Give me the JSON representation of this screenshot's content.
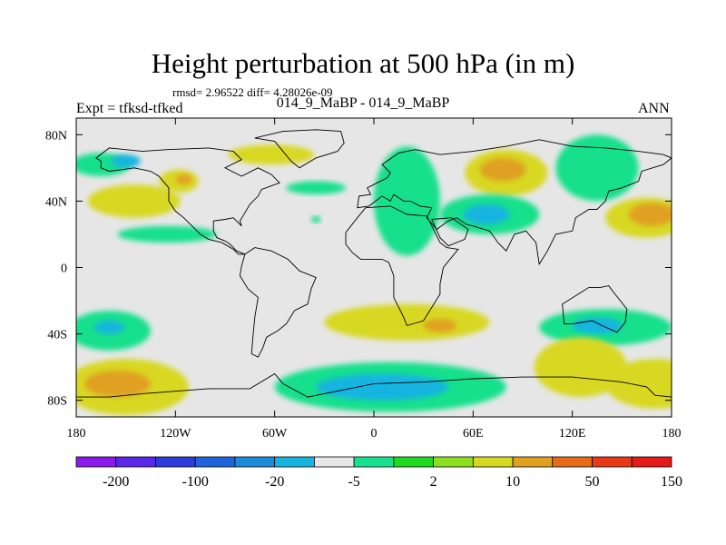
{
  "figure": {
    "title": "Height perturbation at 500 hPa (in m)",
    "stats": "rmsd= 2.96522 diff= 4.28026e-09",
    "left_label": "Expt = tfksd-tfked",
    "center_label": "014_9_MaBP - 014_9_MaBP",
    "right_label": "ANN"
  },
  "chart_data": {
    "type": "heatmap",
    "title": "Height perturbation at 500 hPa (in m)",
    "xlabel": "",
    "ylabel": "",
    "xlim": [
      -180,
      180
    ],
    "ylim": [
      -90,
      90
    ],
    "x_ticks": [
      {
        "value": -180,
        "label": "180"
      },
      {
        "value": -120,
        "label": "120W"
      },
      {
        "value": -60,
        "label": "60W"
      },
      {
        "value": 0,
        "label": "0"
      },
      {
        "value": 60,
        "label": "60E"
      },
      {
        "value": 120,
        "label": "120E"
      },
      {
        "value": 180,
        "label": "180"
      }
    ],
    "y_ticks": [
      {
        "value": 80,
        "label": "80N"
      },
      {
        "value": 40,
        "label": "40N"
      },
      {
        "value": 0,
        "label": "0"
      },
      {
        "value": -40,
        "label": "40S"
      },
      {
        "value": -80,
        "label": "80S"
      }
    ],
    "background_level": 0,
    "anomalies": [
      {
        "lon": -165,
        "lat": 62,
        "rx": 18,
        "ry": 7,
        "level": -5
      },
      {
        "lon": -150,
        "lat": 64,
        "rx": 9,
        "ry": 4,
        "level": -20
      },
      {
        "lon": -145,
        "lat": 40,
        "rx": 28,
        "ry": 10,
        "level": 5
      },
      {
        "lon": -118,
        "lat": 52,
        "rx": 12,
        "ry": 7,
        "level": 5
      },
      {
        "lon": -115,
        "lat": 53,
        "rx": 5,
        "ry": 3,
        "level": 10
      },
      {
        "lon": -125,
        "lat": 20,
        "rx": 30,
        "ry": 5,
        "level": -5
      },
      {
        "lon": -62,
        "lat": 68,
        "rx": 26,
        "ry": 6,
        "level": 5
      },
      {
        "lon": -35,
        "lat": 48,
        "rx": 18,
        "ry": 4,
        "level": -5
      },
      {
        "lon": -35,
        "lat": 29,
        "rx": 3,
        "ry": 2,
        "level": -5
      },
      {
        "lon": 20,
        "lat": 40,
        "rx": 20,
        "ry": 33,
        "level": -5
      },
      {
        "lon": 80,
        "lat": 57,
        "rx": 25,
        "ry": 14,
        "level": 5
      },
      {
        "lon": 78,
        "lat": 59,
        "rx": 14,
        "ry": 7,
        "level": 10
      },
      {
        "lon": 70,
        "lat": 32,
        "rx": 30,
        "ry": 12,
        "level": -5
      },
      {
        "lon": 68,
        "lat": 32,
        "rx": 14,
        "ry": 6,
        "level": -20
      },
      {
        "lon": 135,
        "lat": 60,
        "rx": 25,
        "ry": 20,
        "level": -5
      },
      {
        "lon": 165,
        "lat": 30,
        "rx": 25,
        "ry": 12,
        "level": 5
      },
      {
        "lon": 168,
        "lat": 32,
        "rx": 14,
        "ry": 7,
        "level": 10
      },
      {
        "lon": -160,
        "lat": -38,
        "rx": 25,
        "ry": 12,
        "level": -5
      },
      {
        "lon": -160,
        "lat": -36,
        "rx": 9,
        "ry": 4,
        "level": -20
      },
      {
        "lon": -150,
        "lat": -72,
        "rx": 38,
        "ry": 17,
        "level": 5
      },
      {
        "lon": -155,
        "lat": -70,
        "rx": 20,
        "ry": 8,
        "level": 10
      },
      {
        "lon": 20,
        "lat": -33,
        "rx": 50,
        "ry": 11,
        "level": 5
      },
      {
        "lon": 40,
        "lat": -35,
        "rx": 10,
        "ry": 4,
        "level": 10
      },
      {
        "lon": 10,
        "lat": -72,
        "rx": 70,
        "ry": 15,
        "level": -5
      },
      {
        "lon": 5,
        "lat": -72,
        "rx": 40,
        "ry": 8,
        "level": -20
      },
      {
        "lon": 140,
        "lat": -36,
        "rx": 40,
        "ry": 11,
        "level": -5
      },
      {
        "lon": 135,
        "lat": -35,
        "rx": 15,
        "ry": 5,
        "level": -20
      },
      {
        "lon": 125,
        "lat": -60,
        "rx": 28,
        "ry": 18,
        "level": 5
      },
      {
        "lon": 170,
        "lat": -70,
        "rx": 30,
        "ry": 15,
        "level": 5
      }
    ],
    "colorbar": {
      "colors": [
        "#8c1aed",
        "#5a26e8",
        "#2c3bd9",
        "#1e64dc",
        "#1a8ad9",
        "#18b4e0",
        "#e6e6e6",
        "#18e08c",
        "#20d820",
        "#8ce020",
        "#d8d820",
        "#e0a020",
        "#e66a18",
        "#e83818",
        "#e61818"
      ],
      "tick_labels": [
        "-200",
        "-100",
        "-20",
        "-5",
        "2",
        "10",
        "50",
        "150"
      ],
      "levels": [
        -200,
        -150,
        -100,
        -50,
        -20,
        -10,
        -5,
        -2,
        2,
        5,
        10,
        20,
        50,
        100,
        150
      ]
    },
    "regions": [
      {
        "name": "North America",
        "coords": [
          [
            -168,
            66
          ],
          [
            -160,
            72
          ],
          [
            -140,
            70
          ],
          [
            -125,
            71
          ],
          [
            -100,
            72
          ],
          [
            -85,
            70
          ],
          [
            -80,
            65
          ],
          [
            -90,
            60
          ],
          [
            -80,
            55
          ],
          [
            -70,
            60
          ],
          [
            -62,
            56
          ],
          [
            -57,
            51
          ],
          [
            -68,
            47
          ],
          [
            -70,
            43
          ],
          [
            -75,
            38
          ],
          [
            -78,
            33
          ],
          [
            -81,
            28
          ],
          [
            -80,
            25
          ],
          [
            -85,
            30
          ],
          [
            -90,
            29
          ],
          [
            -97,
            28
          ],
          [
            -97,
            22
          ],
          [
            -95,
            18
          ],
          [
            -90,
            16
          ],
          [
            -87,
            14
          ],
          [
            -83,
            10
          ],
          [
            -78,
            8
          ],
          [
            -82,
            8
          ],
          [
            -85,
            11
          ],
          [
            -92,
            15
          ],
          [
            -100,
            17
          ],
          [
            -105,
            20
          ],
          [
            -110,
            25
          ],
          [
            -115,
            30
          ],
          [
            -120,
            34
          ],
          [
            -124,
            40
          ],
          [
            -124,
            48
          ],
          [
            -130,
            55
          ],
          [
            -135,
            58
          ],
          [
            -145,
            60
          ],
          [
            -152,
            59
          ],
          [
            -160,
            58
          ],
          [
            -165,
            60
          ],
          [
            -165,
            64
          ]
        ]
      },
      {
        "name": "Greenland",
        "coords": [
          [
            -72,
            78
          ],
          [
            -55,
            82
          ],
          [
            -35,
            83
          ],
          [
            -20,
            82
          ],
          [
            -18,
            75
          ],
          [
            -22,
            70
          ],
          [
            -35,
            66
          ],
          [
            -45,
            60
          ],
          [
            -50,
            64
          ],
          [
            -55,
            70
          ],
          [
            -60,
            76
          ]
        ]
      },
      {
        "name": "South America",
        "coords": [
          [
            -78,
            8
          ],
          [
            -72,
            12
          ],
          [
            -62,
            10
          ],
          [
            -52,
            5
          ],
          [
            -45,
            -2
          ],
          [
            -35,
            -6
          ],
          [
            -38,
            -13
          ],
          [
            -40,
            -22
          ],
          [
            -48,
            -26
          ],
          [
            -53,
            -34
          ],
          [
            -58,
            -38
          ],
          [
            -65,
            -42
          ],
          [
            -67,
            -48
          ],
          [
            -70,
            -54
          ],
          [
            -74,
            -52
          ],
          [
            -73,
            -40
          ],
          [
            -72,
            -30
          ],
          [
            -70,
            -18
          ],
          [
            -76,
            -13
          ],
          [
            -81,
            -5
          ],
          [
            -80,
            1
          ]
        ]
      },
      {
        "name": "Eurasia",
        "coords": [
          [
            -10,
            36
          ],
          [
            -9,
            43
          ],
          [
            -2,
            44
          ],
          [
            -4,
            48
          ],
          [
            2,
            51
          ],
          [
            8,
            54
          ],
          [
            10,
            57
          ],
          [
            5,
            62
          ],
          [
            15,
            69
          ],
          [
            25,
            71
          ],
          [
            40,
            68
          ],
          [
            60,
            70
          ],
          [
            80,
            73
          ],
          [
            100,
            77
          ],
          [
            120,
            73
          ],
          [
            140,
            72
          ],
          [
            160,
            70
          ],
          [
            175,
            68
          ],
          [
            180,
            66
          ],
          [
            175,
            62
          ],
          [
            162,
            58
          ],
          [
            160,
            52
          ],
          [
            150,
            48
          ],
          [
            142,
            46
          ],
          [
            140,
            40
          ],
          [
            135,
            35
          ],
          [
            130,
            35
          ],
          [
            122,
            30
          ],
          [
            120,
            22
          ],
          [
            110,
            20
          ],
          [
            105,
            10
          ],
          [
            100,
            2
          ],
          [
            98,
            15
          ],
          [
            92,
            22
          ],
          [
            85,
            20
          ],
          [
            80,
            10
          ],
          [
            75,
            15
          ],
          [
            70,
            22
          ],
          [
            60,
            25
          ],
          [
            56,
            26
          ],
          [
            50,
            30
          ],
          [
            45,
            28
          ],
          [
            38,
            23
          ],
          [
            32,
            30
          ],
          [
            35,
            36
          ],
          [
            28,
            37
          ],
          [
            22,
            40
          ],
          [
            18,
            40
          ],
          [
            12,
            44
          ],
          [
            10,
            40
          ],
          [
            5,
            43
          ],
          [
            -3,
            37
          ]
        ]
      },
      {
        "name": "Africa",
        "coords": [
          [
            -17,
            21
          ],
          [
            -10,
            30
          ],
          [
            -5,
            36
          ],
          [
            10,
            37
          ],
          [
            20,
            32
          ],
          [
            32,
            31
          ],
          [
            34,
            27
          ],
          [
            40,
            15
          ],
          [
            44,
            12
          ],
          [
            51,
            11
          ],
          [
            42,
            0
          ],
          [
            40,
            -10
          ],
          [
            40,
            -16
          ],
          [
            35,
            -24
          ],
          [
            30,
            -32
          ],
          [
            20,
            -35
          ],
          [
            18,
            -30
          ],
          [
            12,
            -18
          ],
          [
            12,
            -5
          ],
          [
            9,
            3
          ],
          [
            5,
            5
          ],
          [
            -8,
            5
          ],
          [
            -13,
            9
          ],
          [
            -17,
            14
          ]
        ]
      },
      {
        "name": "Arabia",
        "coords": [
          [
            35,
            29
          ],
          [
            47,
            30
          ],
          [
            57,
            23
          ],
          [
            55,
            17
          ],
          [
            45,
            13
          ],
          [
            40,
            18
          ]
        ]
      },
      {
        "name": "Australia",
        "coords": [
          [
            114,
            -22
          ],
          [
            122,
            -17
          ],
          [
            130,
            -12
          ],
          [
            137,
            -12
          ],
          [
            142,
            -11
          ],
          [
            145,
            -15
          ],
          [
            153,
            -25
          ],
          [
            152,
            -33
          ],
          [
            147,
            -39
          ],
          [
            138,
            -35
          ],
          [
            132,
            -32
          ],
          [
            120,
            -34
          ],
          [
            115,
            -34
          ]
        ]
      },
      {
        "name": "Antarctica",
        "coords": [
          [
            -180,
            -78
          ],
          [
            -160,
            -78
          ],
          [
            -140,
            -76
          ],
          [
            -100,
            -73
          ],
          [
            -75,
            -73
          ],
          [
            -60,
            -64
          ],
          [
            -55,
            -70
          ],
          [
            -40,
            -78
          ],
          [
            -20,
            -74
          ],
          [
            0,
            -70
          ],
          [
            30,
            -69
          ],
          [
            60,
            -67
          ],
          [
            90,
            -66
          ],
          [
            120,
            -66
          ],
          [
            150,
            -69
          ],
          [
            165,
            -72
          ],
          [
            170,
            -77
          ],
          [
            180,
            -78
          ],
          [
            180,
            -90
          ],
          [
            -180,
            -90
          ]
        ]
      }
    ]
  }
}
